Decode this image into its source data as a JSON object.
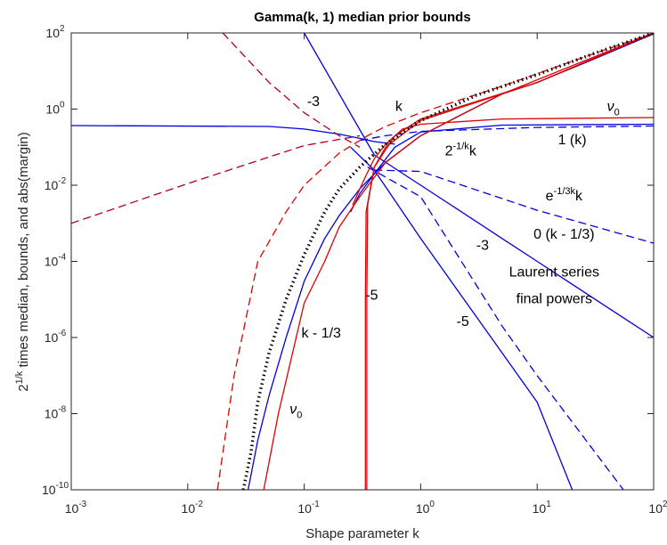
{
  "chart_data": {
    "type": "line",
    "title": "Gamma(k, 1) median prior bounds",
    "xlabel": "Shape parameter k",
    "ylabel_main": "2",
    "ylabel_sup": "1/k",
    "ylabel_rest": " times median, bounds, and abs(margin)",
    "xscale": "log",
    "yscale": "log",
    "xlim": [
      0.001,
      100
    ],
    "ylim": [
      1e-10,
      100
    ],
    "grid": false,
    "x_ticks": [
      {
        "base": "10",
        "exp": "-3"
      },
      {
        "base": "10",
        "exp": "-2"
      },
      {
        "base": "10",
        "exp": "-1"
      },
      {
        "base": "10",
        "exp": "0"
      },
      {
        "base": "10",
        "exp": "1"
      },
      {
        "base": "10",
        "exp": "2"
      }
    ],
    "y_ticks": [
      {
        "base": "10",
        "exp": "-10"
      },
      {
        "base": "10",
        "exp": "-8"
      },
      {
        "base": "10",
        "exp": "-6"
      },
      {
        "base": "10",
        "exp": "-4"
      },
      {
        "base": "10",
        "exp": "-2"
      },
      {
        "base": "10",
        "exp": "0"
      },
      {
        "base": "10",
        "exp": "2"
      }
    ],
    "colors": {
      "red": "#dd0000",
      "darkred": "#b00020",
      "blue": "#0000dd",
      "black": "#000000"
    },
    "series": [
      {
        "style": "solid",
        "color": "blue",
        "points": [
          [
            0.001,
            0.37
          ],
          [
            0.05,
            0.35
          ],
          [
            0.1,
            0.3
          ],
          [
            0.2,
            0.22
          ],
          [
            0.3,
            0.17
          ],
          [
            0.4,
            0.14
          ],
          [
            0.6,
            0.12
          ]
        ]
      },
      {
        "style": "solid",
        "color": "blue",
        "points": [
          [
            0.1,
            100
          ],
          [
            0.4,
            0.0625
          ],
          [
            1,
            0.01
          ],
          [
            2,
            0.0025
          ],
          [
            5,
            0.0004
          ],
          [
            10,
            0.0001
          ],
          [
            50,
            4e-06
          ],
          [
            100,
            1e-06
          ]
        ]
      },
      {
        "style": "solid",
        "color": "blue",
        "points": [
          [
            0.25,
            0.1
          ],
          [
            0.4,
            0.025
          ],
          [
            1,
            0.0004
          ],
          [
            10,
            2e-08
          ],
          [
            20,
            1e-10
          ]
        ]
      },
      {
        "style": "dashed",
        "color": "blue",
        "points": [
          [
            0.35,
            0.03
          ],
          [
            1,
            0.005
          ],
          [
            5,
            2e-06
          ],
          [
            10,
            1e-07
          ],
          [
            55,
            1e-10
          ]
        ]
      },
      {
        "style": "dashed",
        "color": "blue",
        "points": [
          [
            0.4,
            0.025
          ],
          [
            1,
            0.023
          ],
          [
            10,
            0.0022
          ],
          [
            100,
            0.0003
          ]
        ]
      },
      {
        "style": "dashed",
        "color": "blue",
        "points": [
          [
            0.3,
            0.15
          ],
          [
            0.5,
            0.2
          ],
          [
            1,
            0.26
          ],
          [
            10,
            0.33
          ],
          [
            100,
            0.36
          ]
        ]
      },
      {
        "style": "solid",
        "color": "blue",
        "points": [
          [
            0.033,
            1e-10
          ],
          [
            0.04,
            2e-09
          ],
          [
            0.05,
            3e-08
          ],
          [
            0.07,
            1e-06
          ],
          [
            0.1,
            3e-05
          ],
          [
            0.15,
            0.0004
          ],
          [
            0.2,
            0.0016
          ],
          [
            0.3,
            0.008
          ],
          [
            0.5,
            0.04
          ],
          [
            1,
            0.2
          ],
          [
            2,
            0.6
          ],
          [
            5,
            2.5
          ],
          [
            10,
            5
          ],
          [
            30,
            20
          ],
          [
            100,
            95
          ]
        ]
      },
      {
        "style": "solid",
        "color": "blue",
        "points": [
          [
            0.25,
            0.002
          ],
          [
            0.3,
            0.006
          ],
          [
            0.4,
            0.02
          ],
          [
            0.6,
            0.1
          ],
          [
            1,
            0.25
          ],
          [
            5,
            0.38
          ],
          [
            100,
            0.4
          ]
        ]
      },
      {
        "style": "dashed",
        "color": "darkred",
        "points": [
          [
            0.001,
            0.001
          ],
          [
            0.01,
            0.011
          ],
          [
            0.05,
            0.055
          ],
          [
            0.1,
            0.11
          ],
          [
            0.3,
            0.2
          ]
        ]
      },
      {
        "style": "dashed",
        "color": "darkred",
        "points": [
          [
            0.02,
            100
          ],
          [
            0.05,
            5
          ],
          [
            0.1,
            0.8
          ],
          [
            0.2,
            0.2
          ],
          [
            0.3,
            0.1
          ]
        ]
      },
      {
        "style": "dashed",
        "color": "red",
        "points": [
          [
            0.018,
            1e-10
          ],
          [
            0.025,
            1e-07
          ],
          [
            0.04,
            0.0001
          ],
          [
            0.07,
            0.002
          ],
          [
            0.1,
            0.01
          ],
          [
            0.2,
            0.07
          ],
          [
            0.35,
            0.2
          ],
          [
            0.5,
            0.35
          ],
          [
            1,
            0.8
          ],
          [
            5,
            4
          ],
          [
            20,
            18
          ],
          [
            100,
            100
          ]
        ]
      },
      {
        "style": "solid",
        "color": "red",
        "points": [
          [
            0.045,
            1e-10
          ],
          [
            0.06,
            1e-08
          ],
          [
            0.1,
            8e-06
          ],
          [
            0.15,
            0.0001
          ],
          [
            0.2,
            0.0008
          ],
          [
            0.3,
            0.005
          ],
          [
            0.5,
            0.04
          ],
          [
            1,
            0.2
          ],
          [
            5,
            2.5
          ],
          [
            100,
            100
          ]
        ]
      },
      {
        "style": "solid",
        "color": "red",
        "points": [
          [
            0.26,
            0.003
          ],
          [
            0.33,
            0.015
          ],
          [
            0.4,
            0.05
          ],
          [
            0.5,
            0.12
          ],
          [
            0.7,
            0.3
          ],
          [
            1,
            0.4
          ],
          [
            5,
            0.55
          ],
          [
            100,
            0.6
          ]
        ]
      },
      {
        "style": "solid",
        "color": "red",
        "points": [
          [
            0.345,
            1e-10
          ],
          [
            0.345,
            1e-05
          ],
          [
            0.35,
            0.003
          ],
          [
            0.4,
            0.03
          ],
          [
            0.5,
            0.1
          ],
          [
            0.8,
            0.3
          ],
          [
            1,
            0.5
          ],
          [
            10,
            5
          ],
          [
            100,
            100
          ]
        ]
      },
      {
        "style": "solid",
        "color": "red",
        "points": [
          [
            0.335,
            1e-10
          ],
          [
            0.335,
            1e-05
          ],
          [
            0.34,
            0.002
          ],
          [
            0.4,
            0.03
          ],
          [
            0.6,
            0.2
          ],
          [
            1,
            0.55
          ],
          [
            10,
            5
          ],
          [
            100,
            100
          ]
        ]
      },
      {
        "style": "dotted",
        "color": "black",
        "points": [
          [
            0.03,
            1e-10
          ],
          [
            0.035,
            1e-09
          ],
          [
            0.04,
            2e-08
          ],
          [
            0.05,
            4e-07
          ],
          [
            0.07,
            1e-05
          ],
          [
            0.1,
            0.00015
          ],
          [
            0.15,
            0.002
          ],
          [
            0.2,
            0.008
          ],
          [
            0.3,
            0.03
          ],
          [
            0.5,
            0.12
          ],
          [
            1,
            0.5
          ],
          [
            3,
            2.3
          ],
          [
            10,
            8
          ],
          [
            30,
            28
          ],
          [
            100,
            100
          ]
        ]
      }
    ],
    "annotations": [
      {
        "text": "-3",
        "x": 0.12,
        "y": 1.2
      },
      {
        "text": "k",
        "x": 0.65,
        "y": 0.9
      },
      {
        "text": "ν",
        "sub": "0",
        "x": 45,
        "y": 0.9
      },
      {
        "text": "2",
        "sup": "-1/k",
        "post": "k",
        "x": 2.2,
        "y": 0.06
      },
      {
        "text": "1 (k)",
        "x": 20,
        "y": 0.12
      },
      {
        "text": "e",
        "sup": "-1/3k",
        "post": "k",
        "x": 17,
        "y": 0.004
      },
      {
        "text": "0 (k - 1/3)",
        "x": 17,
        "y": 0.0004
      },
      {
        "text": "-3",
        "x": 3.4,
        "y": 0.0002
      },
      {
        "text": "Laurent series",
        "x": 14,
        "y": 4e-05
      },
      {
        "text": "final powers",
        "x": 14,
        "y": 8e-06
      },
      {
        "text": "-5",
        "x": 0.38,
        "y": 1e-05
      },
      {
        "text": "-5",
        "x": 2.3,
        "y": 2e-06
      },
      {
        "text": "k - 1/3",
        "x": 0.14,
        "y": 1e-06
      },
      {
        "text": "ν",
        "sub": "0",
        "x": 0.085,
        "y": 1e-08
      }
    ]
  }
}
